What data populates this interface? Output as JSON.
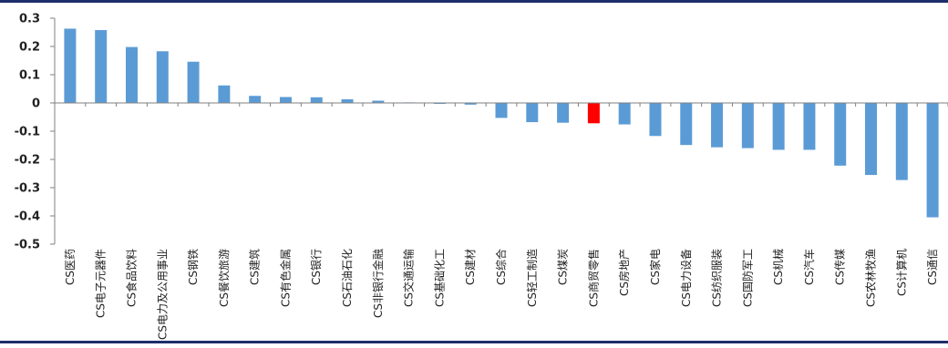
{
  "chart_data": {
    "type": "bar",
    "categories": [
      "CS医药",
      "CS电子元器件",
      "CS食品饮料",
      "CS电力及公用事业",
      "CS钢铁",
      "CS餐饮旅游",
      "CS建筑",
      "CS有色金属",
      "CS银行",
      "CS石油石化",
      "CS非银行金融",
      "CS交通运输",
      "CS基础化工",
      "CS建材",
      "CS综合",
      "CS轻工制造",
      "CS煤炭",
      "CS商贸零售",
      "CS房地产",
      "CS家电",
      "CS电力设备",
      "CS纺织服装",
      "CS国防军工",
      "CS机械",
      "CS汽车",
      "CS传媒",
      "CS农林牧渔",
      "CS计算机",
      "CS通信"
    ],
    "values": [
      0.263,
      0.258,
      0.198,
      0.183,
      0.146,
      0.062,
      0.025,
      0.021,
      0.02,
      0.013,
      0.008,
      0.002,
      -0.002,
      -0.006,
      -0.053,
      -0.068,
      -0.07,
      -0.072,
      -0.076,
      -0.117,
      -0.149,
      -0.157,
      -0.16,
      -0.166,
      -0.166,
      -0.222,
      -0.255,
      -0.273,
      -0.405
    ],
    "highlight_index": 17,
    "colors": {
      "bar": "#5b9bd5",
      "highlight": "#ff0000",
      "frame": "#1f2d6b"
    },
    "ylim": [
      -0.5,
      0.3
    ],
    "yticks": [
      "0.3",
      "0.2",
      "0.1",
      "0",
      "-0.1",
      "-0.2",
      "-0.3",
      "-0.4",
      "-0.5"
    ],
    "title": "",
    "xlabel": "",
    "ylabel": "",
    "grid": false,
    "legend": "none"
  }
}
